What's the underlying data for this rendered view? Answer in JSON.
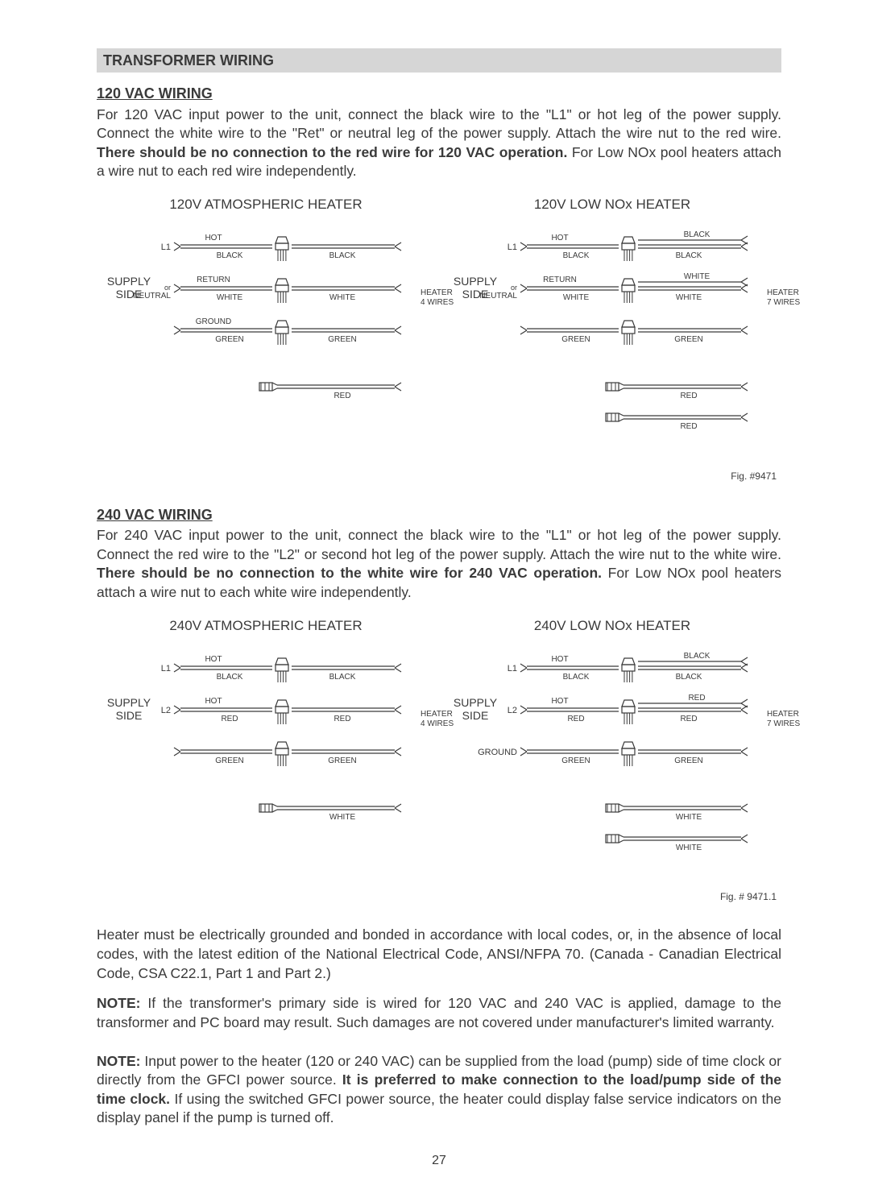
{
  "page": {
    "number": "27"
  },
  "header": {
    "title": "TRANSFORMER WIRING"
  },
  "sec120": {
    "heading": "120 VAC WIRING",
    "p1a": "For 120 VAC input power to the unit, connect the black wire to the \"L1\" or hot leg of the power supply. Connect the white wire to the \"Ret\" or neutral leg of the power supply. Attach the wire nut to the red wire. ",
    "p1b": "There should be no connection to the red wire for 120 VAC operation.",
    "p1c": "  For Low NOx pool heaters attach a wire nut to each red wire independently."
  },
  "sec240": {
    "heading": "240 VAC WIRING",
    "p1a": "For 240 VAC input power to the unit, connect the black wire to the \"L1\" or hot leg of the power supply. Connect the red wire to the \"L2\" or second hot leg of the power supply. Attach the wire nut to the white wire. ",
    "p1b": "There should be no connection to the white wire for 240 VAC operation.",
    "p1c": "  For Low NOx pool heaters attach a wire nut to each white wire independently."
  },
  "ground_para": "Heater must be electrically grounded and bonded in accordance with local codes, or, in the absence of local codes, with the latest edition of the National Electrical Code, ANSI/NFPA 70. (Canada - Canadian Electrical Code, CSA C22.1, Part 1 and Part 2.)",
  "note1": {
    "label": "NOTE:",
    "text": "  If the transformer's primary side is wired for 120 VAC and 240 VAC is applied, damage to the transformer and PC board may result. Such damages are not covered under manufacturer's limited warranty."
  },
  "note2": {
    "label": "NOTE:",
    "t1": "  Input power to the heater (120 or 240 VAC) can be supplied from the load (pump) side of time clock or directly from the GFCI power source.  ",
    "t2": "It is preferred to make connection to the load/pump side of the time clock.",
    "t3": " If using the switched GFCI power source, the heater could display false service indicators on the display panel if the pump is turned off."
  },
  "diag120a": {
    "title": "120V ATMOSPHERIC HEATER",
    "supply": "SUPPLY\nSIDE",
    "rows": [
      {
        "lterm": "L1",
        "ltop": "HOT",
        "lbot": "",
        "left": "BLACK",
        "right": "BLACK",
        "join": "nut",
        "rtop": ""
      },
      {
        "lterm": "",
        "ltop": "RETURN",
        "lmid": "or",
        "lbot": "NEUTRAL",
        "left": "WHITE",
        "right": "WHITE",
        "join": "nut",
        "rtop": ""
      },
      {
        "lterm": "",
        "ltop": "GROUND",
        "lbot": "",
        "left": "GREEN",
        "right": "GREEN",
        "join": "nut",
        "rtop": ""
      }
    ],
    "capped": [
      {
        "label": "RED"
      }
    ],
    "heater_side": "HEATER\n4 WIRES"
  },
  "diag120b": {
    "title": "120V LOW NOx HEATER",
    "supply": "SUPPLY\nSIDE",
    "rows": [
      {
        "lterm": "L1",
        "ltop": "HOT",
        "lbot": "",
        "left": "BLACK",
        "right": "BLACK",
        "join": "nut",
        "rtop": "BLACK"
      },
      {
        "lterm": "",
        "ltop": "RETURN",
        "lmid": "or",
        "lbot": "NEUTRAL",
        "left": "WHITE",
        "right": "WHITE",
        "join": "nut",
        "rtop": "WHITE"
      },
      {
        "lterm": "",
        "ltop": "",
        "lbot": "",
        "left": "GREEN",
        "right": "GREEN",
        "join": "nut",
        "rtop": ""
      }
    ],
    "capped": [
      {
        "label": "RED"
      },
      {
        "label": "RED"
      }
    ],
    "heater_side": "HEATER\n7 WIRES",
    "fig": "Fig. #9471"
  },
  "diag240a": {
    "title": "240V ATMOSPHERIC HEATER",
    "supply": "SUPPLY\nSIDE",
    "rows": [
      {
        "lterm": "L1",
        "ltop": "HOT",
        "lbot": "",
        "left": "BLACK",
        "right": "BLACK",
        "join": "nut",
        "rtop": ""
      },
      {
        "lterm": "L2",
        "ltop": "HOT",
        "lbot": "",
        "left": "RED",
        "right": "RED",
        "join": "nut",
        "rtop": ""
      },
      {
        "lterm": "",
        "ltop": "",
        "lbot": "",
        "left": "GREEN",
        "right": "GREEN",
        "join": "nut",
        "rtop": ""
      }
    ],
    "capped": [
      {
        "label": "WHITE"
      }
    ],
    "heater_side": "HEATER\n4 WIRES"
  },
  "diag240b": {
    "title": "240V LOW NOx HEATER",
    "supply": "SUPPLY\nSIDE",
    "rows": [
      {
        "lterm": "L1",
        "ltop": "HOT",
        "lbot": "",
        "left": "BLACK",
        "right": "BLACK",
        "join": "nut",
        "rtop": "BLACK"
      },
      {
        "lterm": "L2",
        "ltop": "HOT",
        "lbot": "",
        "left": "RED",
        "right": "RED",
        "join": "nut",
        "rtop": "RED"
      },
      {
        "lterm": "GROUND",
        "ltop": "",
        "lbot": "",
        "left": "GREEN",
        "right": "GREEN",
        "join": "nut",
        "rtop": ""
      }
    ],
    "capped": [
      {
        "label": "WHITE"
      },
      {
        "label": "WHITE"
      }
    ],
    "heater_side": "HEATER\n7 WIRES",
    "fig": "Fig. # 9471.1"
  },
  "style": {
    "stroke": "#3a3a3a",
    "fontsize_small": 10,
    "fontsize_label": 11
  }
}
